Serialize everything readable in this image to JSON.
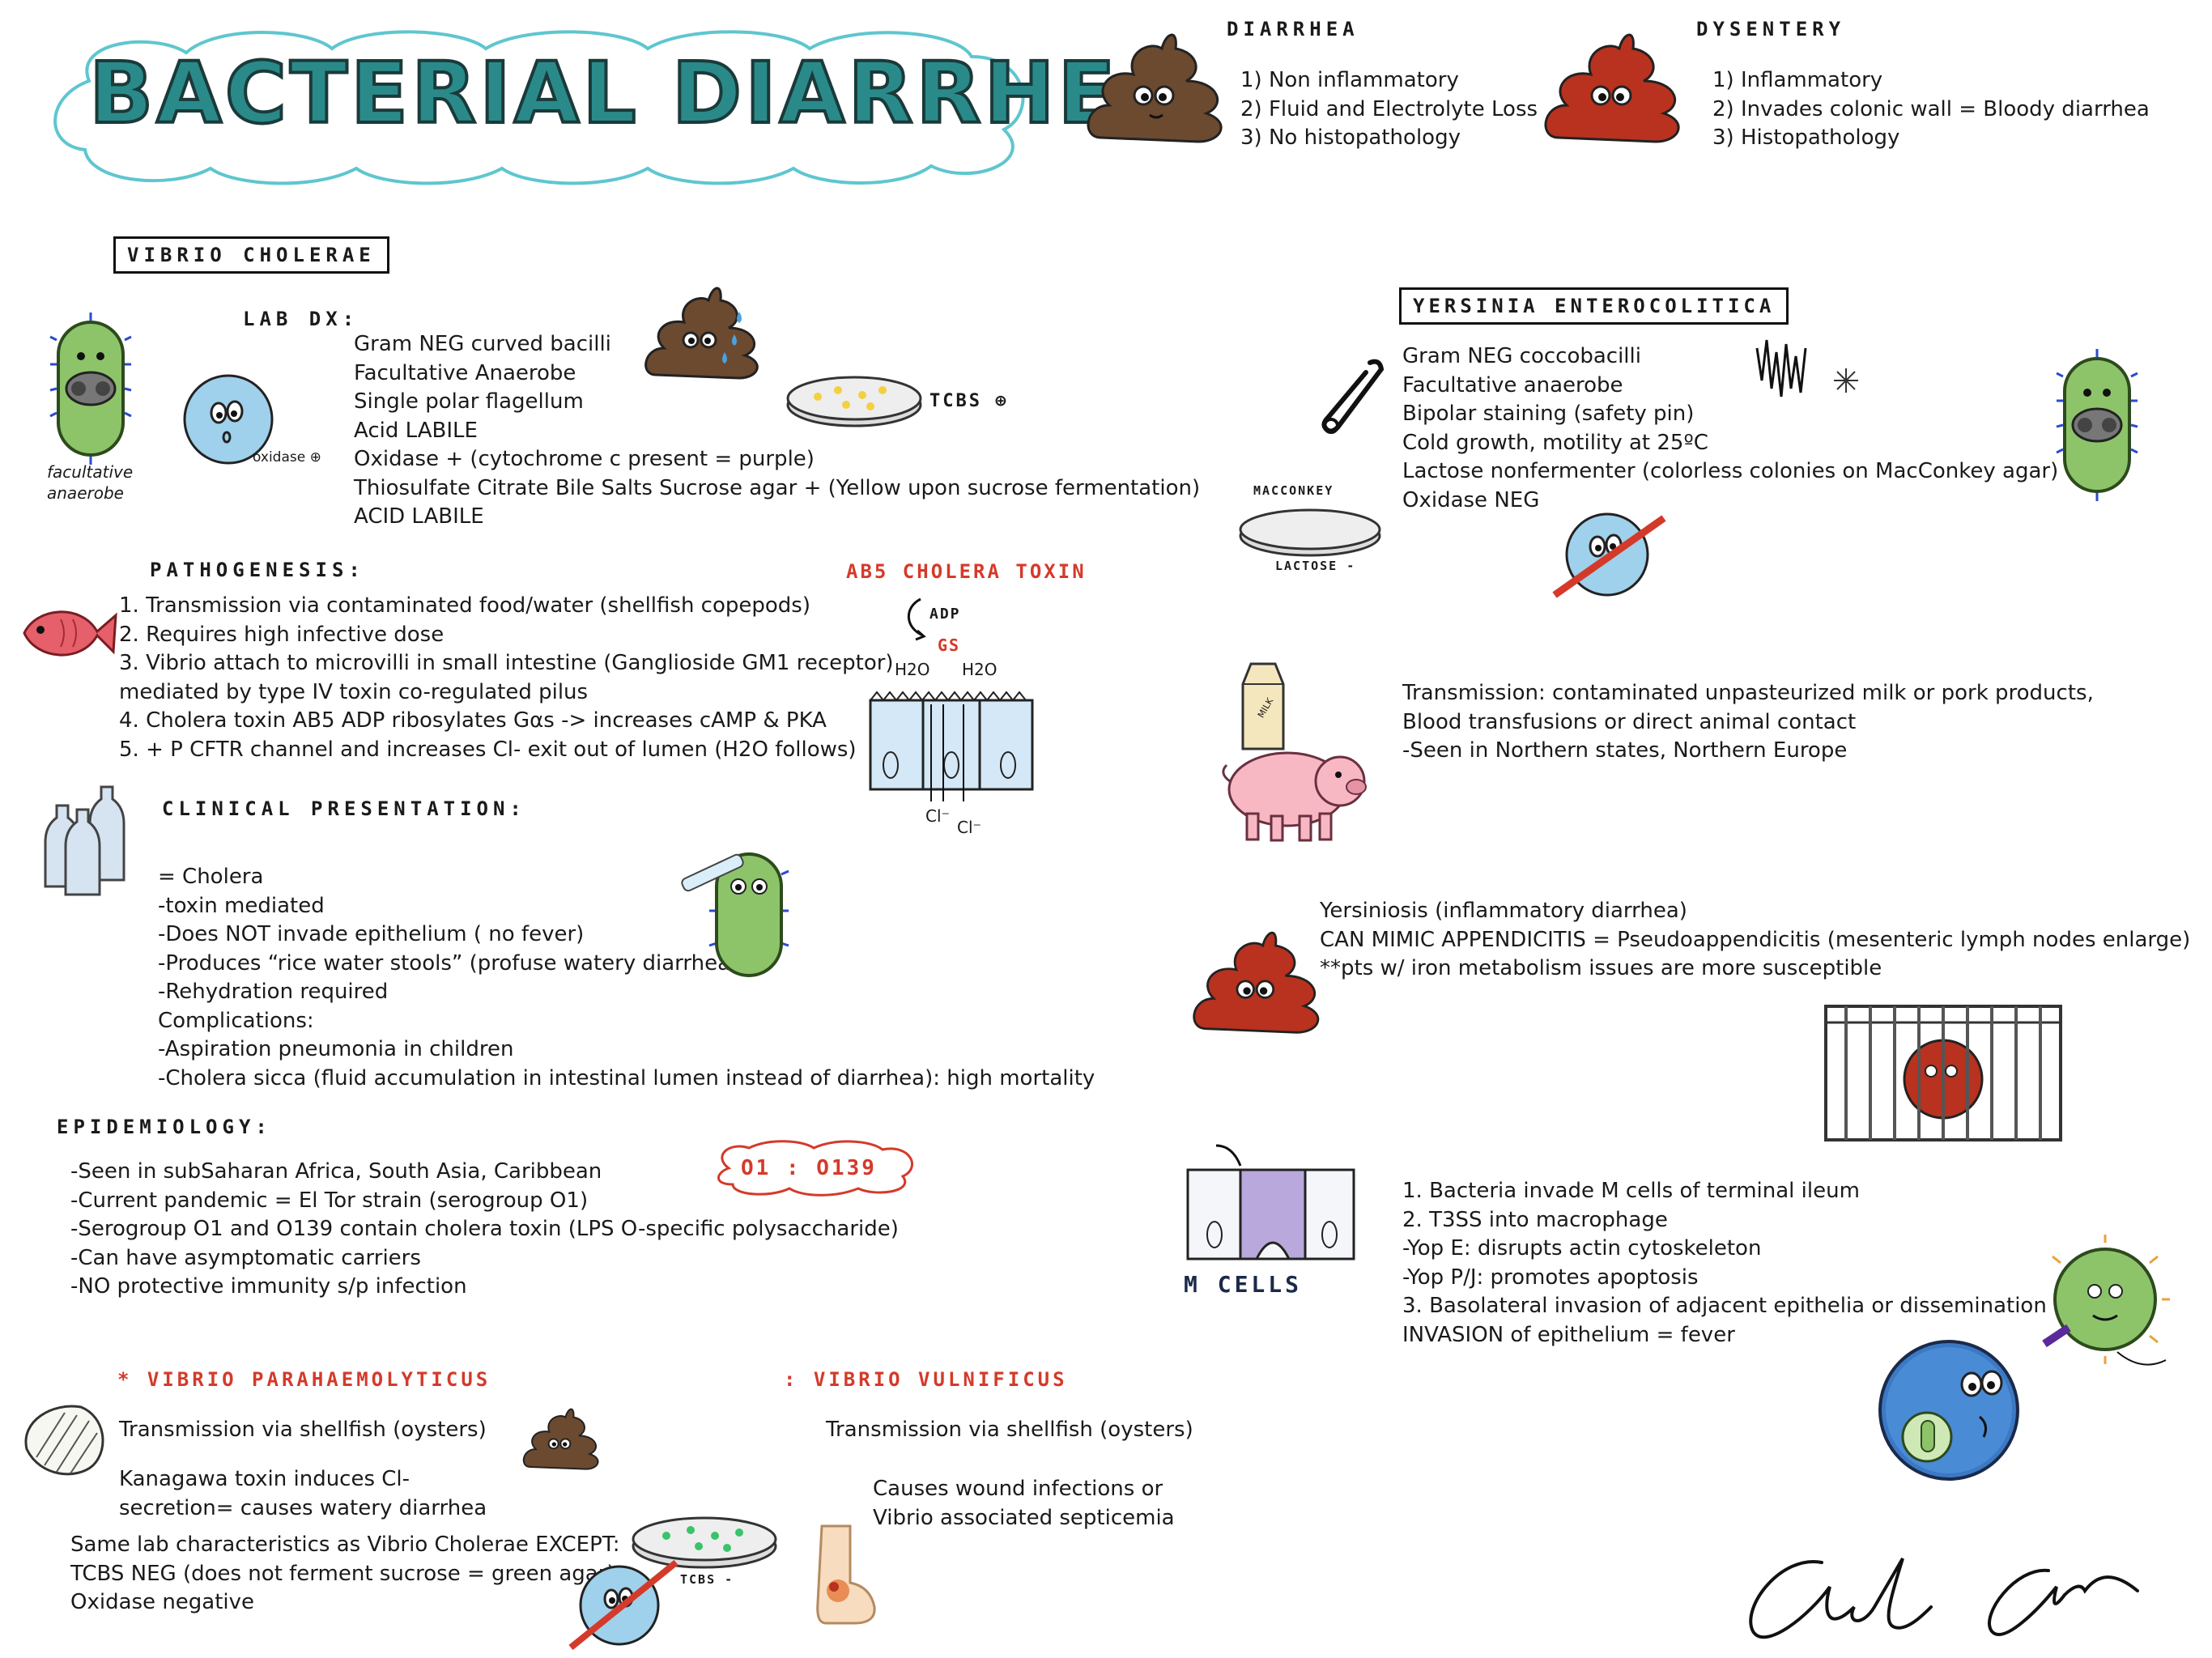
{
  "title": "BACTERIAL DIARRHEA",
  "diarrhea": {
    "heading": "DIARRHEA",
    "items": [
      "1) Non inflammatory",
      "2) Fluid and Electrolyte Loss",
      "3) No histopathology"
    ]
  },
  "dysentery": {
    "heading": "DYSENTERY",
    "items": [
      "1) Inflammatory",
      "2) Invades colonic wall = Bloody diarrhea",
      "3) Histopathology"
    ]
  },
  "vibrio": {
    "heading": "VIBRIO CHOLERAE",
    "lab_dx_label": "LAB DX:",
    "bacterium_caption": "facultative anaerobe",
    "oxidase_label": "oxidase ⊕",
    "tcbs_label": "TCBS ⊕",
    "lab_items": [
      "Gram NEG curved bacilli",
      "Facultative Anaerobe",
      "Single polar flagellum",
      "Acid LABILE",
      "Oxidase + (cytochrome c present = purple)",
      "Thiosulfate Citrate Bile Salts Sucrose agar + (Yellow upon sucrose fermentation)",
      "ACID LABILE"
    ],
    "pathogenesis_label": "PATHOGENESIS:",
    "pathogenesis_items": [
      "1. Transmission via contaminated food/water (shellfish copepods)",
      "2. Requires high infective dose",
      "3. Vibrio attach to microvilli in small intestine (Ganglioside GM1 receptor)",
      "mediated by type IV toxin co-regulated pilus",
      "4. Cholera toxin AB5 ADP ribosylates Gαs -> increases cAMP & PKA",
      "5. + P CFTR channel and increases Cl- exit out of lumen (H2O follows)"
    ],
    "toxin_label": "AB5 CHOLERA TOXIN",
    "toxin_adp": "ADP",
    "toxin_gs": "Gs",
    "water_label_1": "H2O",
    "water_label_2": "H2O",
    "cl_label_1": "Cl⁻",
    "cl_label_2": "Cl⁻",
    "clinical_label": "CLINICAL PRESENTATION:",
    "clinical_items": [
      "= Cholera",
      "-toxin mediated",
      "-Does NOT invade epithelium ( no fever)",
      "-Produces “rice water stools” (profuse watery diarrhea)",
      "-Rehydration required",
      "Complications:",
      "-Aspiration pneumonia in children",
      "-Cholera sicca (fluid accumulation in intestinal lumen instead of diarrhea): high mortality"
    ],
    "epi_label": "EPIDEMIOLOGY:",
    "epi_items": [
      "-Seen in subSaharan Africa, South Asia, Caribbean",
      "-Current pandemic = El Tor strain (serogroup O1)",
      "-Serogroup O1 and O139 contain cholera toxin (LPS O-specific polysaccharide)",
      "-Can have asymptomatic carriers",
      "-NO protective immunity s/p infection"
    ],
    "serogroups": "O1 : O139"
  },
  "parahaem": {
    "heading": "* VIBRIO PARAHAEMOLYTICUS",
    "transmission": "Transmission via shellfish (oysters)",
    "toxin": [
      "Kanagawa toxin induces Cl-",
      "secretion= causes watery diarrhea"
    ],
    "lab": [
      "Same lab characteristics as Vibrio Cholerae EXCEPT:",
      "TCBS NEG (does not ferment sucrose = green agar)",
      "Oxidase negative"
    ],
    "tcbs_label": "TCBS -"
  },
  "vulnificus": {
    "heading": ": VIBRIO VULNIFICUS",
    "transmission": "Transmission via shellfish (oysters)",
    "effects": [
      "Causes wound infections or",
      "Vibrio associated septicemia"
    ]
  },
  "yersinia": {
    "heading": "YERSINIA ENTEROCOLITICA",
    "lab_items": [
      "Gram NEG coccobacilli",
      "Facultative anaerobe",
      "Bipolar staining (safety pin)",
      "Cold growth, motility at 25ºC",
      "Lactose nonfermenter (colorless colonies on MacConkey agar)",
      "Oxidase NEG"
    ],
    "macconkey_label": "MACCONKEY",
    "lactose_label": "LACTOSE -",
    "milk_label": "MILK",
    "transmission_items": [
      "Transmission: contaminated unpasteurized milk or pork products,",
      "Blood transfusions or direct animal contact",
      "-Seen in Northern states, Northern Europe"
    ],
    "disease_items": [
      "Yersiniosis (inflammatory diarrhea)",
      "CAN MIMIC APPENDICITIS = Pseudoappendicitis (mesenteric lymph nodes enlarge)",
      "**pts w/ iron metabolism issues are more susceptible"
    ],
    "mcells_label": "M CELLS",
    "mechanism_items": [
      "1. Bacteria invade M cells of terminal ileum",
      "2. T3SS into macrophage",
      "-Yop E: disrupts actin cytoskeleton",
      "-Yop P/J: promotes apoptosis",
      "3. Basolateral invasion of adjacent epithelia or dissemination",
      "INVASION of epithelium = fever"
    ]
  },
  "signature": "Cel Cr",
  "colors": {
    "title_fill": "#2a8a8a",
    "cloud_outline": "#5ec6cf",
    "brown_stool": "#6b4a30",
    "red_stool": "#b8321f",
    "red_text": "#d43a2a",
    "bacterium_green": "#8dc46a",
    "cell_blue": "#9fd0ec"
  }
}
